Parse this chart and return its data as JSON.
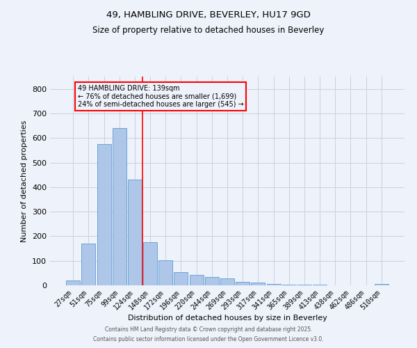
{
  "title1": "49, HAMBLING DRIVE, BEVERLEY, HU17 9GD",
  "title2": "Size of property relative to detached houses in Beverley",
  "xlabel": "Distribution of detached houses by size in Beverley",
  "ylabel": "Number of detached properties",
  "bin_labels": [
    "27sqm",
    "51sqm",
    "75sqm",
    "99sqm",
    "124sqm",
    "148sqm",
    "172sqm",
    "196sqm",
    "220sqm",
    "244sqm",
    "269sqm",
    "293sqm",
    "317sqm",
    "341sqm",
    "365sqm",
    "389sqm",
    "413sqm",
    "438sqm",
    "462sqm",
    "486sqm",
    "510sqm"
  ],
  "bar_heights": [
    20,
    170,
    575,
    640,
    430,
    175,
    103,
    55,
    42,
    35,
    28,
    15,
    10,
    5,
    3,
    2,
    2,
    1,
    1,
    0,
    7
  ],
  "bar_color": "#aec6e8",
  "bar_edge_color": "#5b9bd5",
  "vline_x_idx": 4,
  "vline_color": "red",
  "annotation_text": "49 HAMBLING DRIVE: 139sqm\n← 76% of detached houses are smaller (1,699)\n24% of semi-detached houses are larger (545) →",
  "annotation_box_color": "red",
  "ylim": [
    0,
    850
  ],
  "yticks": [
    0,
    100,
    200,
    300,
    400,
    500,
    600,
    700,
    800
  ],
  "footer1": "Contains HM Land Registry data © Crown copyright and database right 2025.",
  "footer2": "Contains public sector information licensed under the Open Government Licence v3.0.",
  "bg_color": "#eef2fa",
  "grid_color": "#c8d0e0"
}
